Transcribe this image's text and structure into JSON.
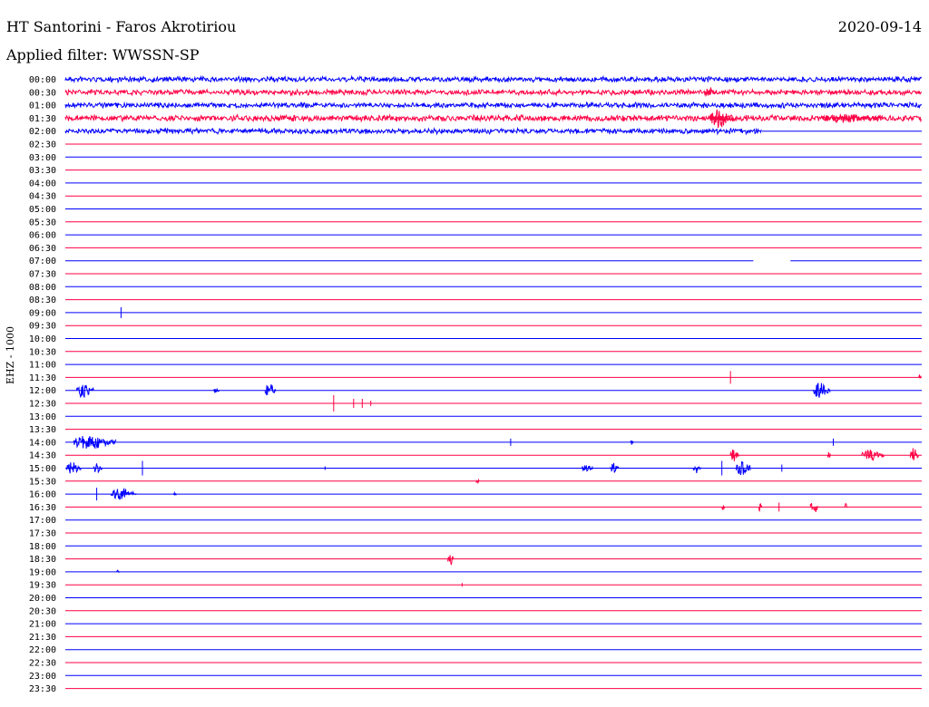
{
  "header": {
    "title": "HT Santorini - Faros Akrotiriou",
    "date": "2020-09-14",
    "filter": "Applied filter: WWSSN-SP"
  },
  "channel_label": "EHZ - 1000",
  "colors": {
    "even": "#0000ff",
    "odd": "#ff0044"
  },
  "chart_data": {
    "type": "line",
    "title": "HT Santorini - Faros Akrotiriou",
    "ylabel": "EHZ - 1000",
    "xlabel": "",
    "rows": [
      "00:00",
      "00:30",
      "01:00",
      "01:30",
      "02:00",
      "02:30",
      "03:00",
      "03:30",
      "04:00",
      "04:30",
      "05:00",
      "05:30",
      "06:00",
      "06:30",
      "07:00",
      "07:30",
      "08:00",
      "08:30",
      "09:00",
      "09:30",
      "10:00",
      "10:30",
      "11:00",
      "11:30",
      "12:00",
      "12:30",
      "13:00",
      "13:30",
      "14:00",
      "14:30",
      "15:00",
      "15:30",
      "16:00",
      "16:30",
      "17:00",
      "17:30",
      "18:00",
      "18:30",
      "19:00",
      "19:30",
      "20:00",
      "20:30",
      "21:00",
      "21:30",
      "22:00",
      "22:30",
      "23:00",
      "23:30"
    ],
    "x_range_minutes": [
      0,
      30
    ],
    "noise_rows": [
      {
        "row": 0,
        "end": 30,
        "amp": 3
      },
      {
        "row": 1,
        "end": 30,
        "amp": 3
      },
      {
        "row": 2,
        "end": 30,
        "amp": 3
      },
      {
        "row": 3,
        "end": 30,
        "amp": 3.5
      },
      {
        "row": 4,
        "end": 24.4,
        "amp": 3
      }
    ],
    "gaps": [
      {
        "row": 14,
        "start": 24.1,
        "end": 25.4
      }
    ],
    "events": [
      {
        "row": 1,
        "t": 22.4,
        "amp": 6,
        "dur": 0.4
      },
      {
        "row": 3,
        "t": 22.6,
        "amp": 11,
        "dur": 0.8
      },
      {
        "row": 3,
        "t": 26.5,
        "amp": 5,
        "dur": 2.0
      },
      {
        "row": 18,
        "t": 1.95,
        "amp": 6,
        "dur": 0.02
      },
      {
        "row": 23,
        "t": 23.3,
        "amp": 7,
        "dur": 0.05
      },
      {
        "row": 23,
        "t": 29.9,
        "amp": 5,
        "dur": 0.08
      },
      {
        "row": 24,
        "t": 0.4,
        "amp": 9,
        "dur": 0.6
      },
      {
        "row": 24,
        "t": 5.2,
        "amp": 4,
        "dur": 0.2
      },
      {
        "row": 24,
        "t": 7.0,
        "amp": 8,
        "dur": 0.4
      },
      {
        "row": 24,
        "t": 26.2,
        "amp": 9,
        "dur": 0.6
      },
      {
        "row": 25,
        "t": 9.4,
        "amp": 9,
        "dur": 0.04
      },
      {
        "row": 25,
        "t": 10.1,
        "amp": 5,
        "dur": 0.04
      },
      {
        "row": 25,
        "t": 10.4,
        "amp": 5,
        "dur": 0.04
      },
      {
        "row": 25,
        "t": 10.7,
        "amp": 3,
        "dur": 0.05
      },
      {
        "row": 28,
        "t": 0.3,
        "amp": 8,
        "dur": 1.5
      },
      {
        "row": 28,
        "t": 15.6,
        "amp": 4,
        "dur": 0.03
      },
      {
        "row": 28,
        "t": 19.8,
        "amp": 4,
        "dur": 0.1
      },
      {
        "row": 28,
        "t": 26.9,
        "amp": 4,
        "dur": 0.04
      },
      {
        "row": 29,
        "t": 23.3,
        "amp": 8,
        "dur": 0.3
      },
      {
        "row": 29,
        "t": 26.7,
        "amp": 7,
        "dur": 0.1
      },
      {
        "row": 29,
        "t": 27.9,
        "amp": 6,
        "dur": 0.8
      },
      {
        "row": 29,
        "t": 29.6,
        "amp": 8,
        "dur": 0.3
      },
      {
        "row": 30,
        "t": 0.05,
        "amp": 7,
        "dur": 0.5
      },
      {
        "row": 30,
        "t": 1.0,
        "amp": 6,
        "dur": 0.3
      },
      {
        "row": 30,
        "t": 2.7,
        "amp": 8,
        "dur": 0.05
      },
      {
        "row": 30,
        "t": 9.1,
        "amp": 2,
        "dur": 0.05
      },
      {
        "row": 30,
        "t": 18.1,
        "amp": 4,
        "dur": 0.4
      },
      {
        "row": 30,
        "t": 19.1,
        "amp": 6,
        "dur": 0.3
      },
      {
        "row": 30,
        "t": 22.0,
        "amp": 6,
        "dur": 0.3
      },
      {
        "row": 30,
        "t": 23.0,
        "amp": 8,
        "dur": 0.05
      },
      {
        "row": 30,
        "t": 23.5,
        "amp": 8,
        "dur": 0.5
      },
      {
        "row": 30,
        "t": 25.1,
        "amp": 4,
        "dur": 0.05
      },
      {
        "row": 31,
        "t": 14.4,
        "amp": 7,
        "dur": 0.1
      },
      {
        "row": 32,
        "t": 1.1,
        "amp": 7,
        "dur": 0.03
      },
      {
        "row": 32,
        "t": 1.6,
        "amp": 7,
        "dur": 0.9
      },
      {
        "row": 32,
        "t": 3.8,
        "amp": 2,
        "dur": 0.1
      },
      {
        "row": 33,
        "t": 23.0,
        "amp": 6,
        "dur": 0.1
      },
      {
        "row": 33,
        "t": 24.3,
        "amp": 6,
        "dur": 0.1
      },
      {
        "row": 33,
        "t": 25.0,
        "amp": 5,
        "dur": 0.03
      },
      {
        "row": 33,
        "t": 26.1,
        "amp": 8,
        "dur": 0.3
      },
      {
        "row": 33,
        "t": 27.3,
        "amp": 4,
        "dur": 0.1
      },
      {
        "row": 37,
        "t": 13.4,
        "amp": 8,
        "dur": 0.2
      },
      {
        "row": 38,
        "t": 1.8,
        "amp": 2,
        "dur": 0.1
      },
      {
        "row": 39,
        "t": 13.9,
        "amp": 2,
        "dur": 0.03
      }
    ]
  }
}
